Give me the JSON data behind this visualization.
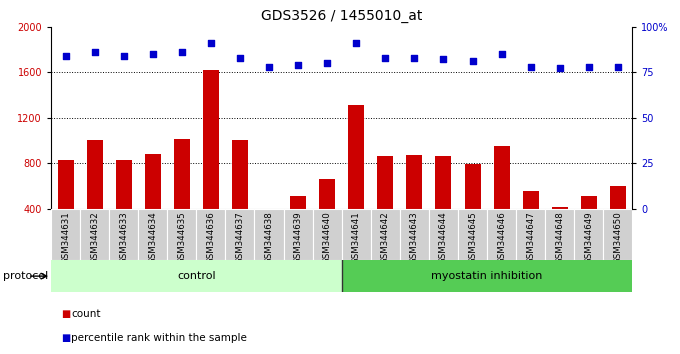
{
  "title": "GDS3526 / 1455010_at",
  "samples": [
    "GSM344631",
    "GSM344632",
    "GSM344633",
    "GSM344634",
    "GSM344635",
    "GSM344636",
    "GSM344637",
    "GSM344638",
    "GSM344639",
    "GSM344640",
    "GSM344641",
    "GSM344642",
    "GSM344643",
    "GSM344644",
    "GSM344645",
    "GSM344646",
    "GSM344647",
    "GSM344648",
    "GSM344649",
    "GSM344650"
  ],
  "counts": [
    830,
    1000,
    830,
    880,
    1010,
    1620,
    1000,
    380,
    510,
    660,
    1310,
    860,
    870,
    860,
    790,
    950,
    560,
    420,
    510,
    600
  ],
  "percentile_ranks": [
    84,
    86,
    84,
    85,
    86,
    91,
    83,
    78,
    79,
    80,
    91,
    83,
    83,
    82,
    81,
    85,
    78,
    77,
    78,
    78
  ],
  "control_count": 10,
  "bar_color": "#cc0000",
  "dot_color": "#0000cc",
  "ylim_left": [
    400,
    2000
  ],
  "ylim_right": [
    0,
    100
  ],
  "yticks_left": [
    400,
    800,
    1200,
    1600,
    2000
  ],
  "yticks_right": [
    0,
    25,
    50,
    75,
    100
  ],
  "grid_values": [
    800,
    1200,
    1600
  ],
  "control_color": "#ccffcc",
  "myostatin_color": "#55cc55",
  "protocol_label": "protocol",
  "control_label": "control",
  "myostatin_label": "myostatin inhibition",
  "legend_count_label": "count",
  "legend_pct_label": "percentile rank within the sample",
  "title_fontsize": 10,
  "tick_fontsize": 7,
  "label_fontsize": 8
}
